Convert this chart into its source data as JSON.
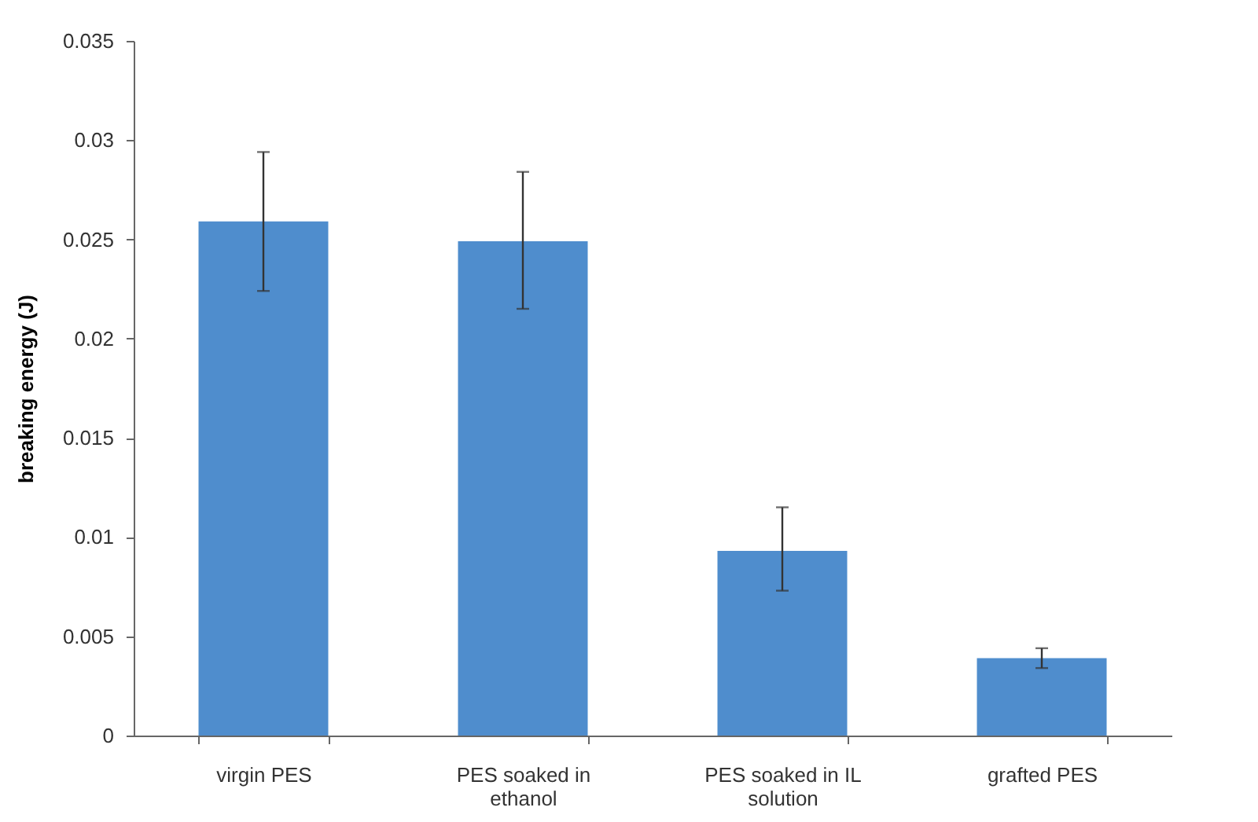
{
  "chart_data": {
    "type": "bar",
    "ylabel": "breaking energy (J)",
    "categories": [
      "virgin PES",
      "PES soaked in ethanol",
      "PES soaked in IL solution",
      "grafted PES"
    ],
    "values": [
      0.0259,
      0.0249,
      0.0093,
      0.0039
    ],
    "errors": [
      [
        0.0224,
        0.0294
      ],
      [
        0.0215,
        0.0284
      ],
      [
        0.0073,
        0.0115
      ],
      [
        0.0034,
        0.0044
      ]
    ],
    "color": "#4f8dcd",
    "ylim": [
      0,
      0.035
    ],
    "yticks": [
      0,
      0.005,
      0.01,
      0.015,
      0.02,
      0.025,
      0.03,
      0.035
    ],
    "grid": false
  }
}
